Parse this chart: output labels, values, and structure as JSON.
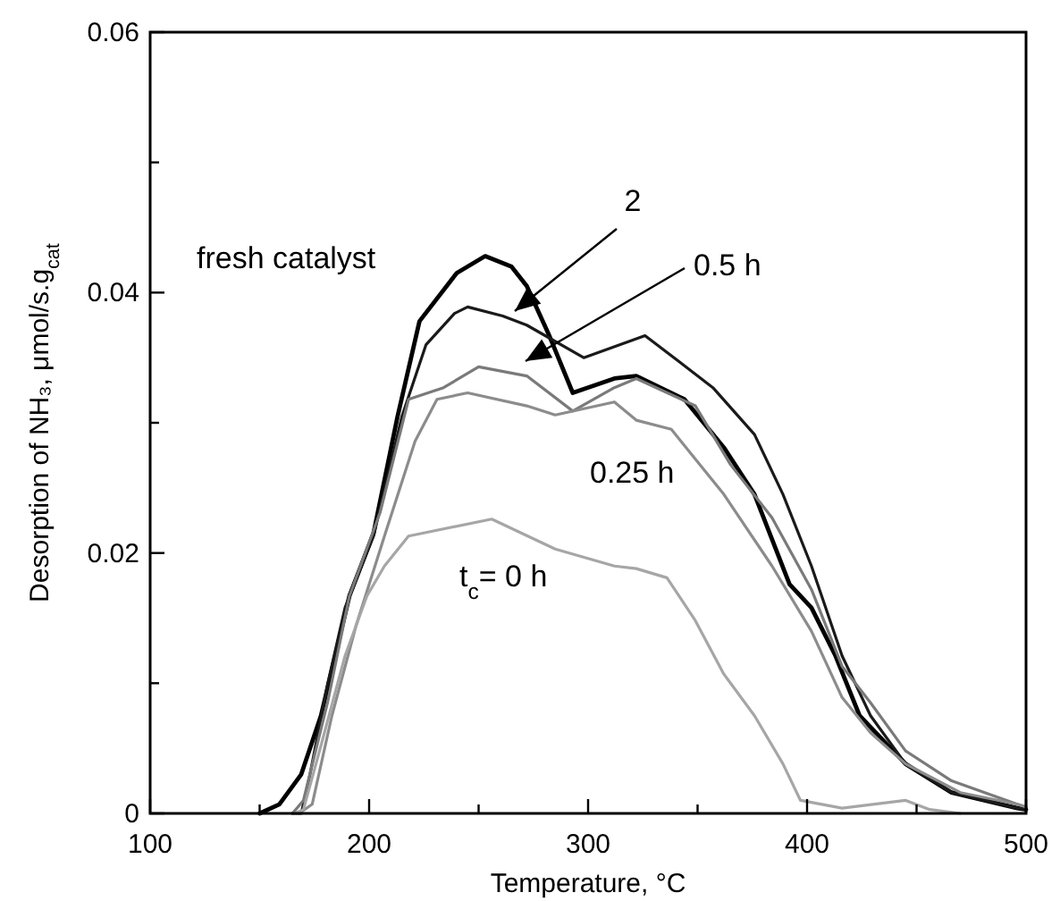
{
  "chart_data": {
    "type": "line",
    "xlabel": "Temperature, °C",
    "ylabel": "Desorption of NH₃, μmol/s.g$_{cat}$",
    "xlim": [
      100,
      500
    ],
    "ylim": [
      0,
      0.06
    ],
    "xticks": [
      100,
      {
        "value": 150,
        "label": null
      },
      200,
      {
        "value": 250,
        "label": null
      },
      300,
      {
        "value": 350,
        "label": null
      },
      400,
      {
        "value": 450,
        "label": null
      },
      500
    ],
    "yticks": [
      {
        "value": 0,
        "label": "0"
      },
      {
        "value": 0.01,
        "label": null
      },
      0.02,
      {
        "value": 0.03,
        "label": null
      },
      0.04,
      {
        "value": 0.05,
        "label": null
      },
      0.06
    ],
    "grid": false,
    "marker": "none",
    "line_style": "solid",
    "series": [
      {
        "name": "fresh catalyst",
        "color": "#000000",
        "x": [
          150,
          159,
          169,
          178,
          191,
          202,
          213,
          223,
          240,
          253,
          265,
          272,
          282,
          293,
          312,
          322,
          344,
          362,
          376,
          392,
          402,
          413,
          424,
          445,
          466,
          496,
          500
        ],
        "values": [
          0,
          0.0007,
          0.003,
          0.0075,
          0.0167,
          0.0215,
          0.0305,
          0.0378,
          0.0415,
          0.0428,
          0.042,
          0.0405,
          0.0368,
          0.0323,
          0.0334,
          0.0336,
          0.0318,
          0.0281,
          0.0245,
          0.0176,
          0.0158,
          0.0121,
          0.0075,
          0.0038,
          0.0016,
          0.0004,
          0.0003
        ]
      },
      {
        "name": "2",
        "color": "#1a1a1a",
        "x": [
          165,
          169,
          173,
          181,
          189,
          202,
          215,
          226,
          239,
          245,
          261,
          272,
          298,
          326,
          357,
          376,
          389,
          402,
          416,
          429,
          445,
          466,
          496,
          500
        ],
        "values": [
          0,
          0,
          0.003,
          0.0099,
          0.0158,
          0.0213,
          0.0305,
          0.036,
          0.0384,
          0.0389,
          0.0382,
          0.0375,
          0.035,
          0.0367,
          0.0327,
          0.0291,
          0.0245,
          0.019,
          0.0121,
          0.0075,
          0.0038,
          0.0016,
          0.0004,
          0.0003
        ]
      },
      {
        "name": "0.5 h",
        "color": "#7a7a7a",
        "x": [
          165,
          170,
          181,
          191,
          205,
          218,
          234,
          250,
          272,
          293,
          312,
          322,
          349,
          365,
          384,
          402,
          416,
          429,
          445,
          466,
          496,
          500
        ],
        "values": [
          0,
          0.001,
          0.0085,
          0.0167,
          0.0231,
          0.0318,
          0.0327,
          0.0343,
          0.0336,
          0.0309,
          0.0327,
          0.0334,
          0.0313,
          0.0268,
          0.0227,
          0.0172,
          0.0113,
          0.0085,
          0.0048,
          0.0025,
          0.0007,
          0.0005
        ]
      },
      {
        "name": "0.25 h",
        "color": "#8c8c8c",
        "x": [
          168,
          174,
          183,
          194,
          207,
          221,
          231,
          245,
          272,
          285,
          312,
          322,
          338,
          362,
          384,
          402,
          416,
          429,
          445,
          470,
          496,
          500
        ],
        "values": [
          0,
          0.0007,
          0.0075,
          0.0144,
          0.0213,
          0.0286,
          0.0318,
          0.0323,
          0.0313,
          0.0306,
          0.0316,
          0.0302,
          0.0295,
          0.0245,
          0.019,
          0.014,
          0.0089,
          0.0062,
          0.0038,
          0.0016,
          0.0007,
          0.0005
        ]
      },
      {
        "name": "t$_{c}$= 0 h",
        "color": "#a6a6a6",
        "x": [
          166,
          170,
          178,
          189,
          199,
          207,
          218,
          256,
          285,
          312,
          322,
          336,
          349,
          362,
          376,
          389,
          397,
          416,
          445,
          456,
          470
        ],
        "values": [
          0,
          0.0003,
          0.0052,
          0.0121,
          0.0167,
          0.019,
          0.0213,
          0.0226,
          0.0203,
          0.019,
          0.0188,
          0.0181,
          0.0148,
          0.0107,
          0.0075,
          0.0038,
          0.001,
          0.0004,
          0.001,
          0.0003,
          0
        ]
      }
    ]
  }
}
